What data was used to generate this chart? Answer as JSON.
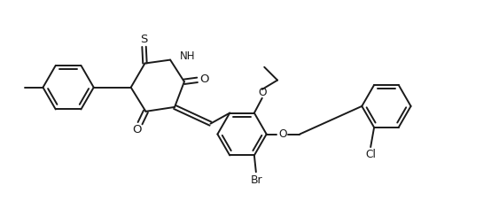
{
  "line_color": "#1a1a1a",
  "bg_color": "#ffffff",
  "lw": 1.4,
  "figsize": [
    5.54,
    2.27
  ],
  "dpi": 100,
  "xlim": [
    0,
    11.0
  ],
  "ylim": [
    0.0,
    4.5
  ]
}
